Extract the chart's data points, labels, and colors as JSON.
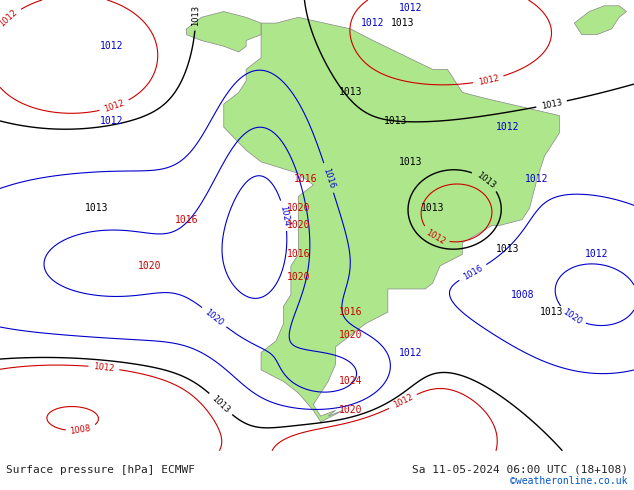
{
  "title_left": "Surface pressure [hPa] ECMWF",
  "title_right": "Sa 11-05-2024 06:00 UTC (18+108)",
  "credit": "©weatheronline.co.uk",
  "background_color": "#d8d8d8",
  "land_color": "#aee68c",
  "ocean_color": "#d8d8d8",
  "fig_width": 6.34,
  "fig_height": 4.9,
  "dpi": 100,
  "bottom_bar_color": "#e8e8e8",
  "text_color": "#222222",
  "credit_color": "#0055cc",
  "contour_low_color": "#cc0000",
  "contour_high_color": "#0000cc",
  "contour_normal_color": "#000000",
  "font_size_label": 8,
  "font_size_credit": 7
}
